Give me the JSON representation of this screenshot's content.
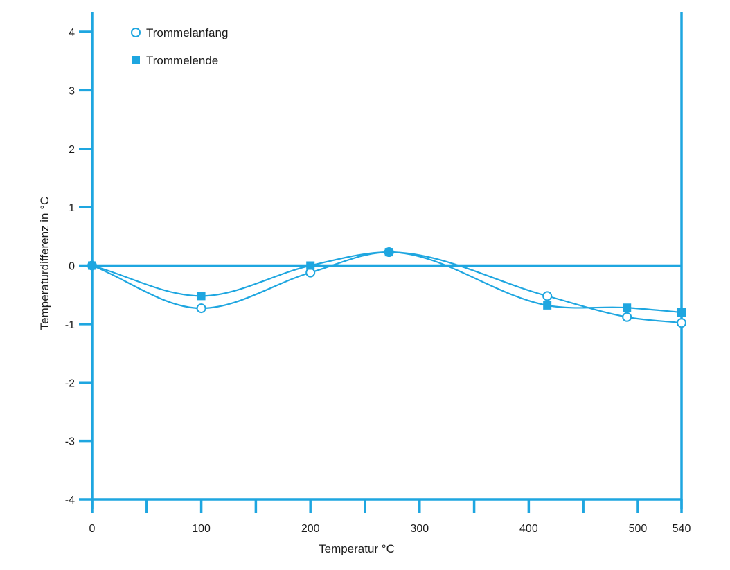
{
  "chart_data": {
    "type": "line",
    "xlabel": "Temperatur °C",
    "ylabel": "Temperaturdifferenz in °C",
    "xlim": [
      0,
      540
    ],
    "ylim": [
      -4,
      4
    ],
    "x_ticks": [
      0,
      100,
      200,
      300,
      400,
      500,
      540
    ],
    "x_minor_ticks": [
      50,
      150,
      250,
      350,
      450
    ],
    "y_ticks": [
      4,
      3,
      2,
      1,
      0,
      -1,
      -2,
      -3,
      -4
    ],
    "color": "#1ea6e0",
    "legend_position": "top-left",
    "series": [
      {
        "name": "Trommelanfang",
        "marker": "circle-open",
        "x": [
          0,
          100,
          200,
          272,
          417,
          490,
          540
        ],
        "y": [
          0,
          -0.73,
          -0.12,
          0.23,
          -0.52,
          -0.88,
          -0.98
        ]
      },
      {
        "name": "Trommelende",
        "marker": "square-filled",
        "x": [
          0,
          100,
          200,
          272,
          417,
          490,
          540
        ],
        "y": [
          0,
          -0.52,
          0,
          0.23,
          -0.68,
          -0.72,
          -0.8
        ]
      }
    ]
  }
}
